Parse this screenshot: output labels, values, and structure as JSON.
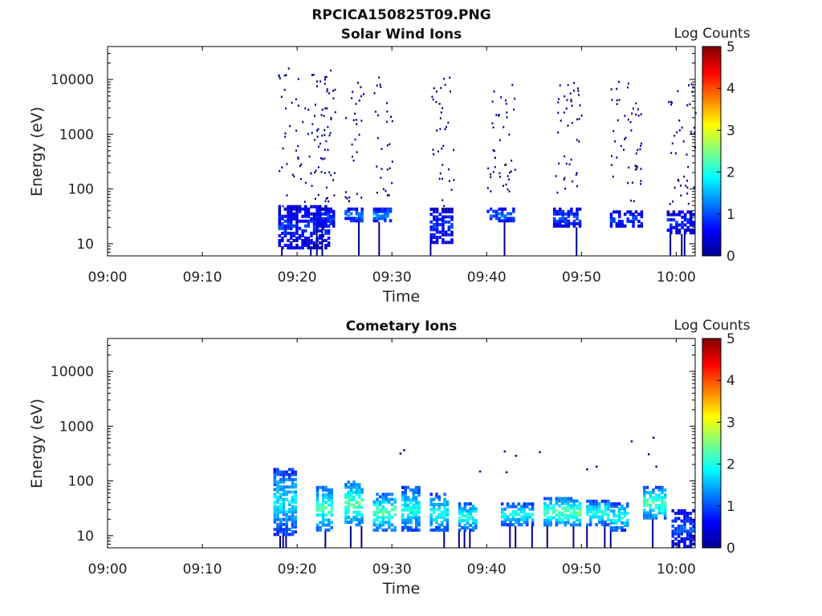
{
  "figure": {
    "filename": "RPCICA150825T09.PNG"
  },
  "chart_data": [
    {
      "type": "heatmap",
      "title": "Solar Wind Ions",
      "xlabel": "Time",
      "ylabel": "Energy (eV)",
      "colorbar_label": "Log Counts",
      "colorbar_ticks": [
        "0",
        "1",
        "2",
        "3",
        "4",
        "5"
      ],
      "colorbar_range": [
        0,
        5
      ],
      "x_ticks": [
        "09:00",
        "09:10",
        "09:20",
        "09:30",
        "09:40",
        "09:50",
        "10:00"
      ],
      "y_ticks": [
        "10",
        "100",
        "1000",
        "10000"
      ],
      "y_scale": "log",
      "xlim_minutes": [
        0,
        62
      ],
      "ylim_eV": [
        6,
        40000
      ],
      "bursts": [
        {
          "start_min": 18.0,
          "end_min": 23.5,
          "sparse_low_eV": 50,
          "sparse_high_eV": 20000,
          "core_low_eV": 8,
          "core_high_eV": 50,
          "core_level": 0.8
        },
        {
          "start_min": 22.0,
          "end_min": 24.0,
          "sparse_low_eV": 60,
          "sparse_high_eV": 10000,
          "core_low_eV": 20,
          "core_high_eV": 45,
          "core_level": 1.0
        },
        {
          "start_min": 25.0,
          "end_min": 27.0,
          "sparse_low_eV": 60,
          "sparse_high_eV": 10000,
          "core_low_eV": 25,
          "core_high_eV": 45,
          "core_level": 1.3
        },
        {
          "start_min": 28.0,
          "end_min": 30.0,
          "sparse_low_eV": 80,
          "sparse_high_eV": 15000,
          "core_low_eV": 25,
          "core_high_eV": 45,
          "core_level": 1.4
        },
        {
          "start_min": 34.0,
          "end_min": 36.5,
          "sparse_low_eV": 50,
          "sparse_high_eV": 12000,
          "core_low_eV": 10,
          "core_high_eV": 45,
          "core_level": 0.8
        },
        {
          "start_min": 40.0,
          "end_min": 43.0,
          "sparse_low_eV": 80,
          "sparse_high_eV": 10000,
          "core_low_eV": 25,
          "core_high_eV": 45,
          "core_level": 1.2
        },
        {
          "start_min": 47.0,
          "end_min": 50.0,
          "sparse_low_eV": 60,
          "sparse_high_eV": 10000,
          "core_low_eV": 20,
          "core_high_eV": 45,
          "core_level": 1.0
        },
        {
          "start_min": 53.0,
          "end_min": 56.5,
          "sparse_low_eV": 60,
          "sparse_high_eV": 10000,
          "core_low_eV": 20,
          "core_high_eV": 40,
          "core_level": 0.9
        },
        {
          "start_min": 59.0,
          "end_min": 62.0,
          "sparse_low_eV": 50,
          "sparse_high_eV": 10000,
          "core_low_eV": 15,
          "core_high_eV": 40,
          "core_level": 0.8
        }
      ]
    },
    {
      "type": "heatmap",
      "title": "Cometary Ions",
      "xlabel": "Time",
      "ylabel": "Energy (eV)",
      "colorbar_label": "Log Counts",
      "colorbar_ticks": [
        "0",
        "1",
        "2",
        "3",
        "4",
        "5"
      ],
      "colorbar_range": [
        0,
        5
      ],
      "x_ticks": [
        "09:00",
        "09:10",
        "09:20",
        "09:30",
        "09:40",
        "09:50",
        "10:00"
      ],
      "y_ticks": [
        "10",
        "100",
        "1000",
        "10000"
      ],
      "y_scale": "log",
      "xlim_minutes": [
        0,
        62
      ],
      "ylim_eV": [
        6,
        40000
      ],
      "bursts": [
        {
          "start_min": 17.5,
          "end_min": 20.0,
          "core_low_eV": 10,
          "core_high_eV": 170,
          "core_level": 1.8
        },
        {
          "start_min": 22.0,
          "end_min": 23.8,
          "core_low_eV": 12,
          "core_high_eV": 80,
          "core_level": 2.3
        },
        {
          "start_min": 25.0,
          "end_min": 27.0,
          "core_low_eV": 15,
          "core_high_eV": 100,
          "core_level": 2.4
        },
        {
          "start_min": 28.0,
          "end_min": 30.5,
          "core_low_eV": 12,
          "core_high_eV": 60,
          "core_level": 2.3
        },
        {
          "start_min": 31.0,
          "end_min": 33.0,
          "core_low_eV": 12,
          "core_high_eV": 80,
          "core_level": 2.0
        },
        {
          "start_min": 34.0,
          "end_min": 36.0,
          "core_low_eV": 12,
          "core_high_eV": 60,
          "core_level": 2.0
        },
        {
          "start_min": 37.0,
          "end_min": 39.0,
          "core_low_eV": 12,
          "core_high_eV": 40,
          "core_level": 2.1
        },
        {
          "start_min": 41.5,
          "end_min": 45.0,
          "core_low_eV": 15,
          "core_high_eV": 40,
          "core_level": 2.0
        },
        {
          "start_min": 46.0,
          "end_min": 50.0,
          "core_low_eV": 15,
          "core_high_eV": 50,
          "core_level": 2.4
        },
        {
          "start_min": 50.5,
          "end_min": 53.0,
          "core_low_eV": 15,
          "core_high_eV": 45,
          "core_level": 2.1
        },
        {
          "start_min": 53.0,
          "end_min": 55.0,
          "core_low_eV": 12,
          "core_high_eV": 40,
          "core_level": 2.0
        },
        {
          "start_min": 56.5,
          "end_min": 59.0,
          "core_low_eV": 20,
          "core_high_eV": 80,
          "core_level": 2.3
        },
        {
          "start_min": 59.5,
          "end_min": 62.0,
          "core_low_eV": 6,
          "core_high_eV": 30,
          "core_level": 1.0
        }
      ],
      "sparse_points": [
        {
          "t_min": 31.2,
          "energy_eV": 380
        },
        {
          "t_min": 30.8,
          "energy_eV": 330
        },
        {
          "t_min": 41.8,
          "energy_eV": 360
        },
        {
          "t_min": 43.0,
          "energy_eV": 300
        },
        {
          "t_min": 45.5,
          "energy_eV": 350
        },
        {
          "t_min": 39.2,
          "energy_eV": 155
        },
        {
          "t_min": 42.0,
          "energy_eV": 150
        },
        {
          "t_min": 50.5,
          "energy_eV": 170
        },
        {
          "t_min": 51.5,
          "energy_eV": 190
        },
        {
          "t_min": 55.2,
          "energy_eV": 550
        },
        {
          "t_min": 57.5,
          "energy_eV": 640
        },
        {
          "t_min": 57.0,
          "energy_eV": 320
        },
        {
          "t_min": 57.8,
          "energy_eV": 190
        }
      ]
    }
  ]
}
